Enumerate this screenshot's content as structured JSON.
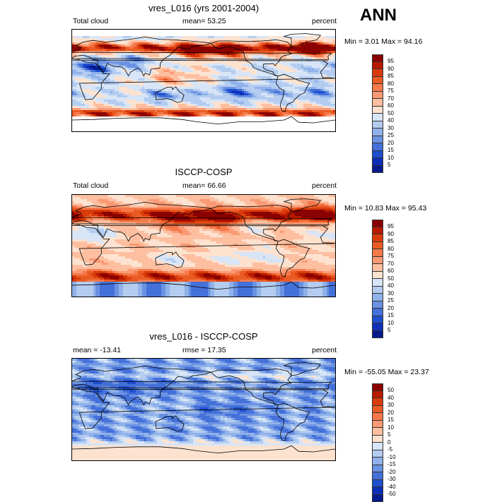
{
  "season": "ANN",
  "panels": [
    {
      "title": "vres_L016 (yrs 2001-2004)",
      "left_label": "Total cloud",
      "center_label": "mean=  53.25",
      "right_label": "percent",
      "minmax": "Min =   3.01 Max =  94.16",
      "colorbar_labels": [
        "95",
        "90",
        "85",
        "80",
        "75",
        "70",
        "60",
        "50",
        "40",
        "30",
        "25",
        "20",
        "15",
        "10",
        "5"
      ],
      "palette": [
        "#8b0000",
        "#b81a00",
        "#d93b0b",
        "#ea5b24",
        "#f5794a",
        "#fa9a74",
        "#fdbfa0",
        "#fde2d0",
        "#d7e5f7",
        "#b4ccf0",
        "#90b2ea",
        "#6b92e2",
        "#4470da",
        "#1e4fd0",
        "#0d2fb8",
        "#061a8c"
      ],
      "field": "model"
    },
    {
      "title": "ISCCP-COSP",
      "left_label": "Total cloud",
      "center_label": "mean=  66.66",
      "right_label": "percent",
      "minmax": "Min =  10.83 Max =  95.43",
      "colorbar_labels": [
        "95",
        "90",
        "85",
        "80",
        "75",
        "70",
        "60",
        "50",
        "40",
        "30",
        "25",
        "20",
        "15",
        "10",
        "5"
      ],
      "palette": [
        "#8b0000",
        "#b81a00",
        "#d93b0b",
        "#ea5b24",
        "#f5794a",
        "#fa9a74",
        "#fdbfa0",
        "#fde2d0",
        "#d7e5f7",
        "#b4ccf0",
        "#90b2ea",
        "#6b92e2",
        "#4470da",
        "#1e4fd0",
        "#0d2fb8",
        "#061a8c"
      ],
      "field": "obs"
    },
    {
      "title": "vres_L016 - ISCCP-COSP",
      "left_label": "mean = -13.41",
      "center_label": "rmse =  17.35",
      "right_label": "percent",
      "minmax": "Min = -55.05 Max =  23.37",
      "colorbar_labels": [
        "50",
        "40",
        "30",
        "20",
        "15",
        "10",
        "5",
        "0",
        "-5",
        "-10",
        "-15",
        "-20",
        "-30",
        "-40",
        "-50"
      ],
      "palette": [
        "#8b0000",
        "#b81a00",
        "#d93b0b",
        "#ea5b24",
        "#f5794a",
        "#fa9a74",
        "#fdbfa0",
        "#fde2d0",
        "#d7e5f7",
        "#b4ccf0",
        "#90b2ea",
        "#6b92e2",
        "#4470da",
        "#1e4fd0",
        "#0d2fb8",
        "#061a8c"
      ],
      "field": "diff"
    }
  ]
}
